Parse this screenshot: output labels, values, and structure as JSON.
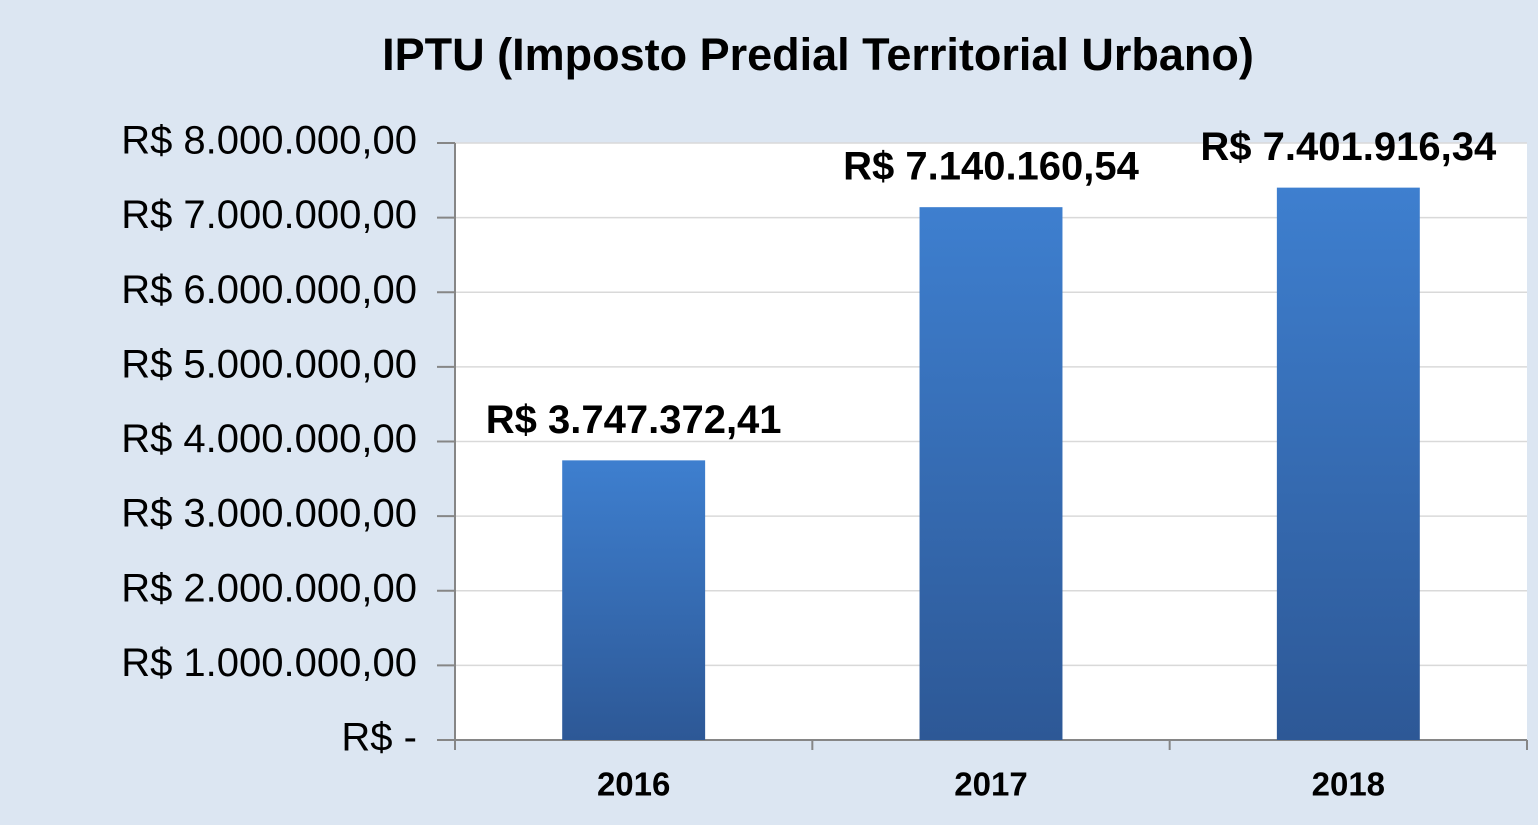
{
  "chart_data": {
    "type": "bar",
    "title": "IPTU (Imposto Predial Territorial Urbano)",
    "categories": [
      "2016",
      "2017",
      "2018"
    ],
    "values": [
      3747372.41,
      7140160.54,
      7401916.34
    ],
    "value_labels": [
      "R$ 3.747.372,41",
      "R$ 7.140.160,54",
      "R$ 7.401.916,34"
    ],
    "color": "#3a74c0",
    "ylim": [
      0,
      8000000
    ],
    "yticks": [
      {
        "value": 0,
        "label": "R$ -"
      },
      {
        "value": 1000000,
        "label": "R$ 1.000.000,00"
      },
      {
        "value": 2000000,
        "label": "R$ 2.000.000,00"
      },
      {
        "value": 3000000,
        "label": "R$ 3.000.000,00"
      },
      {
        "value": 4000000,
        "label": "R$ 4.000.000,00"
      },
      {
        "value": 5000000,
        "label": "R$ 5.000.000,00"
      },
      {
        "value": 6000000,
        "label": "R$ 6.000.000,00"
      },
      {
        "value": 7000000,
        "label": "R$ 7.000.000,00"
      },
      {
        "value": 8000000,
        "label": "R$ 8.000.000,00"
      }
    ],
    "grid": true
  }
}
